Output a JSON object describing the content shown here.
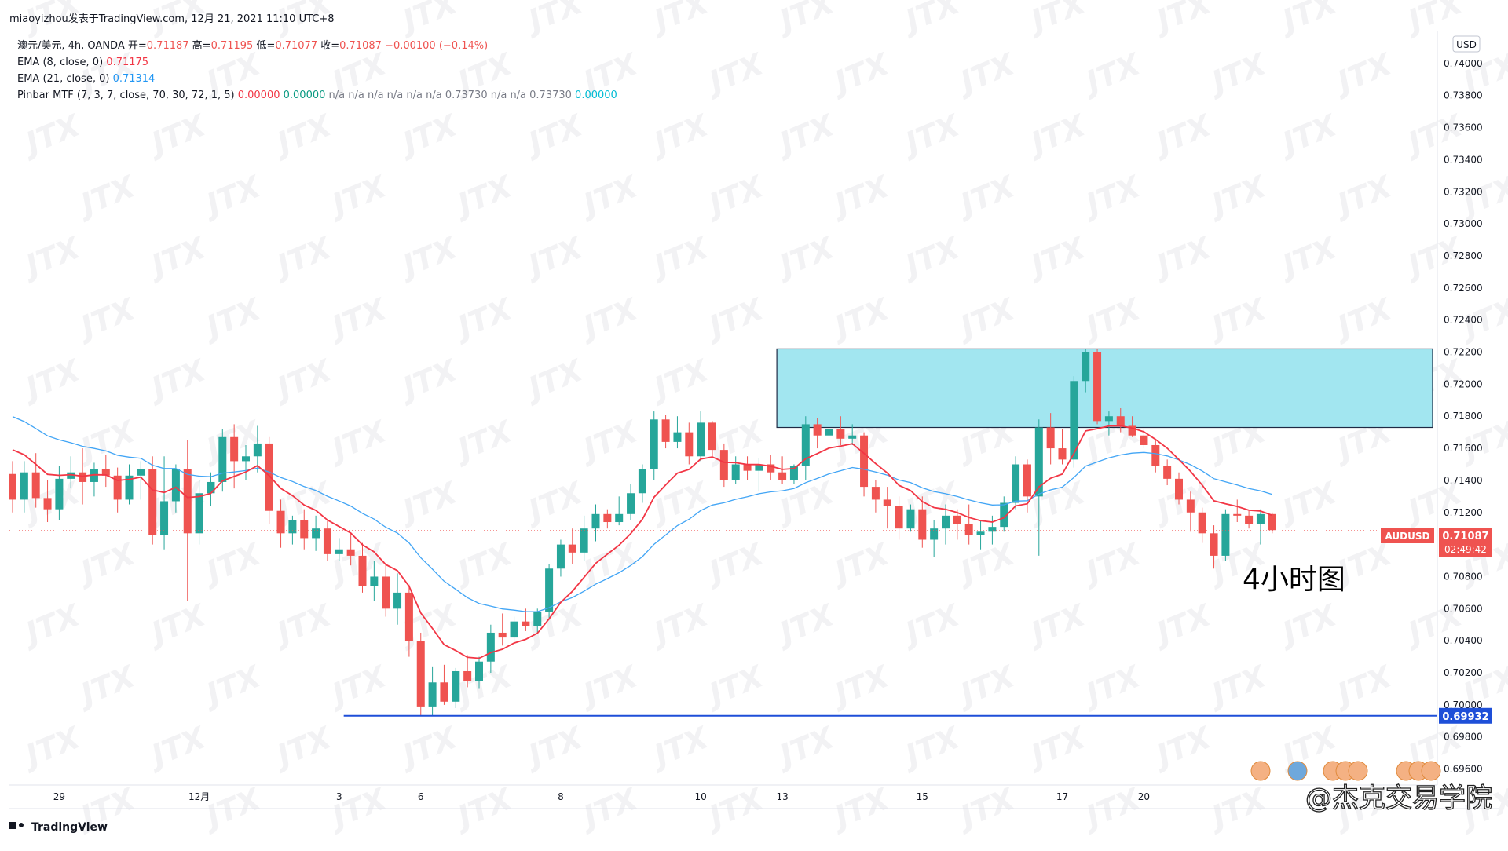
{
  "header": {
    "publisher": "miaoyizhou发表于TradingView.com, 12月 21, 2021 11:10 UTC+8"
  },
  "legend": {
    "symbol": "澳元/美元, 4h, OANDA",
    "ohlc": [
      {
        "label": "开=",
        "value": "0.71187"
      },
      {
        "label": "高=",
        "value": "0.71195"
      },
      {
        "label": "低=",
        "value": "0.71077"
      },
      {
        "label": "收=",
        "value": "0.71087"
      }
    ],
    "change": "−0.00100 (−0.14%)",
    "indicators": [
      {
        "label": "EMA (8, close, 0)",
        "values": [
          "0.71175"
        ],
        "color": "#f23645"
      },
      {
        "label": "EMA (21, close, 0)",
        "values": [
          "0.71314"
        ],
        "color": "#2196f3"
      },
      {
        "label": "Pinbar MTF (7, 3, 7, close, 70, 30, 72, 1, 5)",
        "values": [
          "0.00000",
          "0.00000",
          "n/a",
          "n/a",
          "n/a",
          "n/a",
          "n/a",
          "n/a",
          "0.73730",
          "n/a",
          "n/a",
          "0.73730",
          "0.00000"
        ],
        "colors": [
          "#f23645",
          "#089981",
          "#787b86",
          "#787b86",
          "#787b86",
          "#787b86",
          "#787b86",
          "#787b86",
          "#787b86",
          "#787b86",
          "#787b86",
          "#787b86",
          "#00bcd4"
        ]
      }
    ]
  },
  "colors": {
    "up": "#26a69a",
    "down": "#ef5350",
    "ema8": "#f23645",
    "ema21": "#42a5f5",
    "zone_fill": "#a2e6f0",
    "support": "#1e4fd8",
    "price_line": "#ef5350"
  },
  "annotation": {
    "text": "4小时图"
  },
  "watermark": {
    "text": "@杰克交易学院"
  },
  "branding": {
    "text": "TradingView"
  },
  "chart_data": {
    "type": "candlestick",
    "symbol": "AUDUSD",
    "currency": "USD",
    "ylim": [
      0.695,
      0.742
    ],
    "y_ticks": [
      "0.74000",
      "0.73800",
      "0.73600",
      "0.73400",
      "0.73200",
      "0.73000",
      "0.72800",
      "0.72600",
      "0.72400",
      "0.72200",
      "0.72000",
      "0.71800",
      "0.71600",
      "0.71400",
      "0.71200",
      "0.70800",
      "0.70600",
      "0.70400",
      "0.70200",
      "0.70000",
      "0.69800",
      "0.69600"
    ],
    "x_ticks": [
      {
        "label": "29",
        "index": 4
      },
      {
        "label": "12月",
        "index": 16
      },
      {
        "label": "3",
        "index": 28
      },
      {
        "label": "6",
        "index": 35
      },
      {
        "label": "8",
        "index": 47
      },
      {
        "label": "10",
        "index": 59
      },
      {
        "label": "13",
        "index": 66
      },
      {
        "label": "15",
        "index": 78
      },
      {
        "label": "17",
        "index": 90
      },
      {
        "label": "20",
        "index": 97
      }
    ],
    "last_price": {
      "label": "AUDUSD",
      "value": "0.71087",
      "countdown": "02:49:42"
    },
    "support_line": {
      "value": "0.69932",
      "from_index": 29
    },
    "resistance_zone": {
      "from_index": 66,
      "low": 0.7173,
      "high": 0.7222
    },
    "candles": [
      [
        0.7144,
        0.7152,
        0.712,
        0.7128
      ],
      [
        0.7128,
        0.7152,
        0.712,
        0.7145
      ],
      [
        0.7145,
        0.7157,
        0.7123,
        0.7129
      ],
      [
        0.7129,
        0.714,
        0.7114,
        0.7122
      ],
      [
        0.7122,
        0.7149,
        0.7115,
        0.7141
      ],
      [
        0.7141,
        0.7155,
        0.7135,
        0.7145
      ],
      [
        0.7145,
        0.716,
        0.7125,
        0.7139
      ],
      [
        0.7139,
        0.7151,
        0.713,
        0.7147
      ],
      [
        0.7147,
        0.7156,
        0.7136,
        0.7143
      ],
      [
        0.7143,
        0.7148,
        0.712,
        0.7128
      ],
      [
        0.7128,
        0.715,
        0.7125,
        0.7143
      ],
      [
        0.7143,
        0.7152,
        0.7128,
        0.7147
      ],
      [
        0.7147,
        0.7155,
        0.71,
        0.7106
      ],
      [
        0.7106,
        0.7155,
        0.7097,
        0.7127
      ],
      [
        0.7127,
        0.715,
        0.712,
        0.7147
      ],
      [
        0.7147,
        0.7165,
        0.7065,
        0.7107
      ],
      [
        0.7107,
        0.714,
        0.71,
        0.7132
      ],
      [
        0.7132,
        0.7145,
        0.7124,
        0.7139
      ],
      [
        0.7139,
        0.7172,
        0.7133,
        0.7167
      ],
      [
        0.7167,
        0.7175,
        0.7135,
        0.7152
      ],
      [
        0.7152,
        0.7162,
        0.714,
        0.7155
      ],
      [
        0.7155,
        0.7174,
        0.7145,
        0.7163
      ],
      [
        0.7163,
        0.7167,
        0.7113,
        0.7121
      ],
      [
        0.7121,
        0.7128,
        0.7098,
        0.7107
      ],
      [
        0.7107,
        0.7118,
        0.71,
        0.7115
      ],
      [
        0.7115,
        0.7122,
        0.7097,
        0.7104
      ],
      [
        0.7104,
        0.7118,
        0.7096,
        0.711
      ],
      [
        0.711,
        0.7115,
        0.709,
        0.7094
      ],
      [
        0.7094,
        0.7104,
        0.709,
        0.7097
      ],
      [
        0.7097,
        0.7107,
        0.7087,
        0.7093
      ],
      [
        0.7093,
        0.7101,
        0.707,
        0.7074
      ],
      [
        0.7074,
        0.709,
        0.7065,
        0.708
      ],
      [
        0.708,
        0.7088,
        0.7055,
        0.706
      ],
      [
        0.706,
        0.7082,
        0.705,
        0.707
      ],
      [
        0.707,
        0.7075,
        0.703,
        0.704
      ],
      [
        0.704,
        0.7045,
        0.6993,
        0.6999
      ],
      [
        0.6999,
        0.7024,
        0.6993,
        0.7014
      ],
      [
        0.7014,
        0.7025,
        0.7,
        0.7002
      ],
      [
        0.7002,
        0.7023,
        0.6998,
        0.7021
      ],
      [
        0.7021,
        0.7031,
        0.7011,
        0.7015
      ],
      [
        0.7015,
        0.703,
        0.701,
        0.7027
      ],
      [
        0.7027,
        0.705,
        0.702,
        0.7045
      ],
      [
        0.7045,
        0.7057,
        0.7037,
        0.7042
      ],
      [
        0.7042,
        0.7055,
        0.704,
        0.7052
      ],
      [
        0.7052,
        0.706,
        0.7046,
        0.7049
      ],
      [
        0.7049,
        0.706,
        0.7045,
        0.7058
      ],
      [
        0.7058,
        0.7088,
        0.7053,
        0.7085
      ],
      [
        0.7085,
        0.7103,
        0.708,
        0.71
      ],
      [
        0.71,
        0.711,
        0.7088,
        0.7095
      ],
      [
        0.7095,
        0.7118,
        0.709,
        0.711
      ],
      [
        0.711,
        0.7125,
        0.7102,
        0.7119
      ],
      [
        0.7119,
        0.7122,
        0.711,
        0.7114
      ],
      [
        0.7114,
        0.713,
        0.7112,
        0.7119
      ],
      [
        0.7119,
        0.7138,
        0.7115,
        0.7132
      ],
      [
        0.7132,
        0.715,
        0.7126,
        0.7147
      ],
      [
        0.7147,
        0.7183,
        0.714,
        0.7178
      ],
      [
        0.7178,
        0.7181,
        0.716,
        0.7164
      ],
      [
        0.7164,
        0.718,
        0.716,
        0.717
      ],
      [
        0.717,
        0.7176,
        0.715,
        0.7155
      ],
      [
        0.7155,
        0.7183,
        0.7152,
        0.7176
      ],
      [
        0.7176,
        0.7177,
        0.7155,
        0.7159
      ],
      [
        0.7159,
        0.7163,
        0.7136,
        0.714
      ],
      [
        0.714,
        0.7155,
        0.7138,
        0.715
      ],
      [
        0.715,
        0.7155,
        0.714,
        0.7146
      ],
      [
        0.7146,
        0.7154,
        0.7133,
        0.715
      ],
      [
        0.715,
        0.7156,
        0.714,
        0.7145
      ],
      [
        0.7145,
        0.7155,
        0.7138,
        0.714
      ],
      [
        0.714,
        0.715,
        0.7138,
        0.7149
      ],
      [
        0.7149,
        0.718,
        0.714,
        0.7175
      ],
      [
        0.7175,
        0.7179,
        0.716,
        0.7168
      ],
      [
        0.7168,
        0.7177,
        0.7162,
        0.7172
      ],
      [
        0.7172,
        0.718,
        0.7162,
        0.7166
      ],
      [
        0.7166,
        0.7175,
        0.7162,
        0.7168
      ],
      [
        0.7168,
        0.717,
        0.713,
        0.7136
      ],
      [
        0.7136,
        0.714,
        0.712,
        0.7128
      ],
      [
        0.7128,
        0.7136,
        0.711,
        0.7124
      ],
      [
        0.7124,
        0.713,
        0.7103,
        0.711
      ],
      [
        0.711,
        0.7125,
        0.7108,
        0.7122
      ],
      [
        0.7122,
        0.713,
        0.7098,
        0.7103
      ],
      [
        0.7103,
        0.7115,
        0.7092,
        0.711
      ],
      [
        0.711,
        0.7125,
        0.71,
        0.7118
      ],
      [
        0.7118,
        0.7122,
        0.7103,
        0.7113
      ],
      [
        0.7113,
        0.7125,
        0.71,
        0.7106
      ],
      [
        0.7106,
        0.7115,
        0.7097,
        0.7108
      ],
      [
        0.7108,
        0.7118,
        0.71,
        0.7111
      ],
      [
        0.7111,
        0.713,
        0.7108,
        0.7126
      ],
      [
        0.7126,
        0.7155,
        0.7122,
        0.715
      ],
      [
        0.715,
        0.7153,
        0.712,
        0.713
      ],
      [
        0.713,
        0.7178,
        0.7093,
        0.7173
      ],
      [
        0.7173,
        0.7182,
        0.715,
        0.716
      ],
      [
        0.716,
        0.7172,
        0.715,
        0.7153
      ],
      [
        0.7153,
        0.7205,
        0.7148,
        0.7202
      ],
      [
        0.7202,
        0.7222,
        0.7195,
        0.722
      ],
      [
        0.722,
        0.7222,
        0.7175,
        0.7177
      ],
      [
        0.7177,
        0.7183,
        0.7168,
        0.718
      ],
      [
        0.718,
        0.7185,
        0.717,
        0.7174
      ],
      [
        0.7174,
        0.718,
        0.7167,
        0.7168
      ],
      [
        0.7168,
        0.7172,
        0.716,
        0.7162
      ],
      [
        0.7162,
        0.7166,
        0.7145,
        0.7149
      ],
      [
        0.7149,
        0.7153,
        0.7137,
        0.7141
      ],
      [
        0.7141,
        0.7145,
        0.7125,
        0.7128
      ],
      [
        0.7128,
        0.7133,
        0.7108,
        0.712
      ],
      [
        0.712,
        0.7123,
        0.7101,
        0.7107
      ],
      [
        0.7107,
        0.7112,
        0.7085,
        0.7093
      ],
      [
        0.7093,
        0.7122,
        0.709,
        0.7119
      ],
      [
        0.7119,
        0.7128,
        0.7114,
        0.7118
      ],
      [
        0.7118,
        0.7121,
        0.711,
        0.7113
      ],
      [
        0.7113,
        0.7122,
        0.71,
        0.7119
      ],
      [
        0.7119,
        0.712,
        0.7107,
        0.7109
      ]
    ]
  }
}
